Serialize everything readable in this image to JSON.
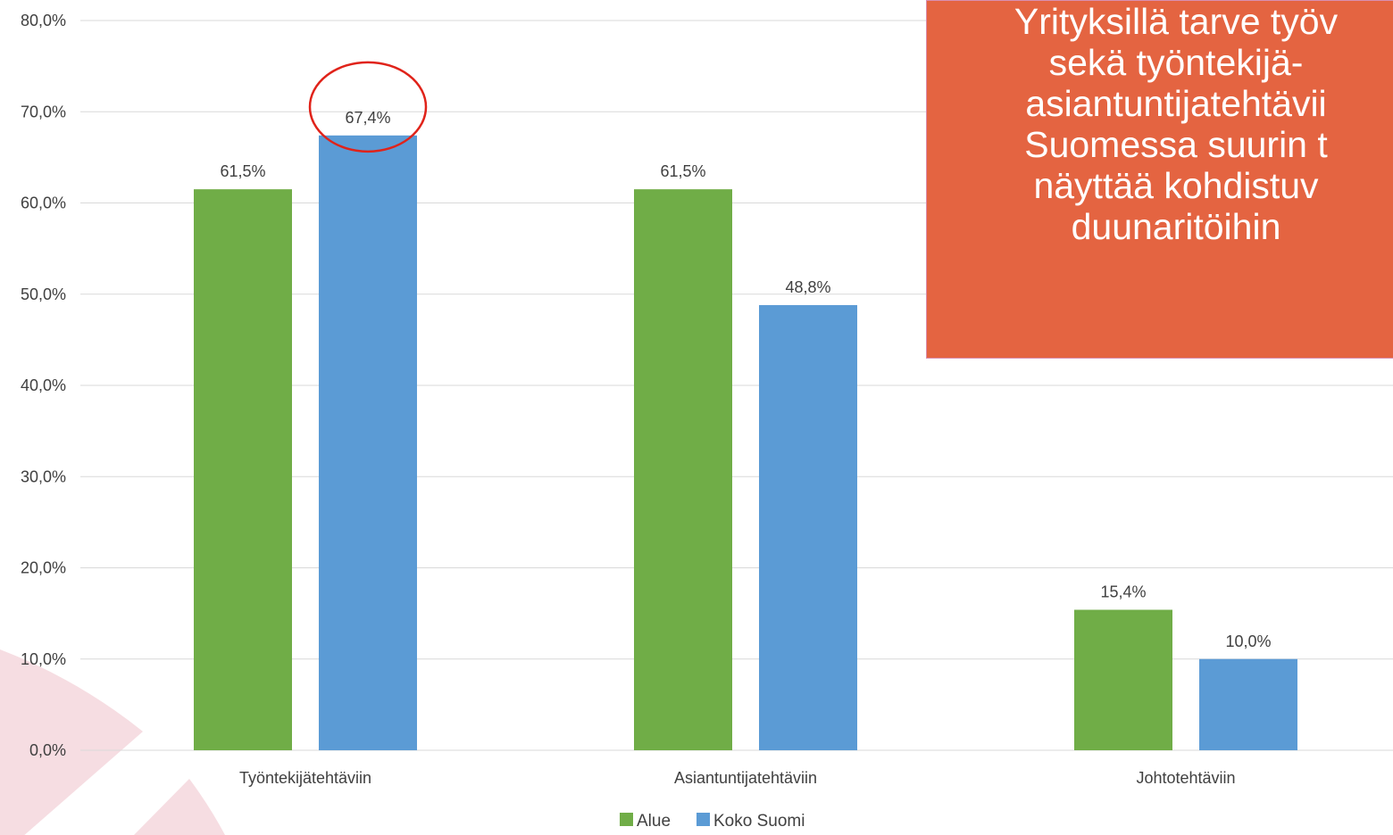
{
  "chart_data": {
    "type": "bar",
    "categories": [
      "Työntekijätehtäviin",
      "Asiantuntijatehtäviin",
      "Johtotehtäviin"
    ],
    "series": [
      {
        "name": "Alue",
        "values": [
          61.5,
          61.5,
          15.4
        ],
        "labels": [
          "61,5%",
          "61,5%",
          "15,4%"
        ],
        "color": "#70ad47"
      },
      {
        "name": "Koko Suomi",
        "values": [
          67.4,
          48.8,
          10.0
        ],
        "labels": [
          "67,4%",
          "48,8%",
          "10,0%"
        ],
        "color": "#5b9bd5"
      }
    ],
    "ylim": [
      0,
      80
    ],
    "yticks": [
      "0,0%",
      "10,0%",
      "20,0%",
      "30,0%",
      "40,0%",
      "50,0%",
      "60,0%",
      "70,0%",
      "80,0%"
    ],
    "grid": true,
    "legend_position": "bottom",
    "highlight": {
      "series": 1,
      "category": 0,
      "color": "#e0231a"
    }
  },
  "callout": {
    "lines": [
      "Yrityksillä tarve työv",
      "sekä työntekijä-",
      "asiantuntijatehtävii",
      "Suomessa suurin t",
      "näyttää kohdistuv",
      "duunaritöihin"
    ]
  },
  "colors": {
    "decoration": "#f6dde2",
    "gridline": "#d9d9d9"
  }
}
